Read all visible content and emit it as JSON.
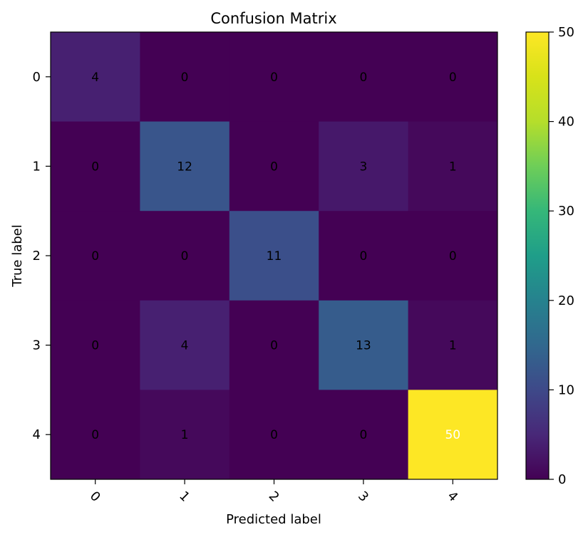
{
  "chart_data": {
    "type": "heatmap",
    "title": "Confusion Matrix",
    "xlabel": "Predicted label",
    "ylabel": "True label",
    "x_categories": [
      "0",
      "1",
      "2",
      "3",
      "4"
    ],
    "y_categories": [
      "0",
      "1",
      "2",
      "3",
      "4"
    ],
    "matrix": [
      [
        4,
        0,
        0,
        0,
        0
      ],
      [
        0,
        12,
        0,
        3,
        1
      ],
      [
        0,
        0,
        11,
        0,
        0
      ],
      [
        0,
        4,
        0,
        13,
        1
      ],
      [
        0,
        1,
        0,
        0,
        50
      ]
    ],
    "colormap": "viridis",
    "vmin": 0,
    "vmax": 50,
    "colorbar_ticks": [
      "0",
      "10",
      "20",
      "30",
      "40",
      "50"
    ],
    "x_tick_rotation_deg": 45,
    "grid": false
  }
}
